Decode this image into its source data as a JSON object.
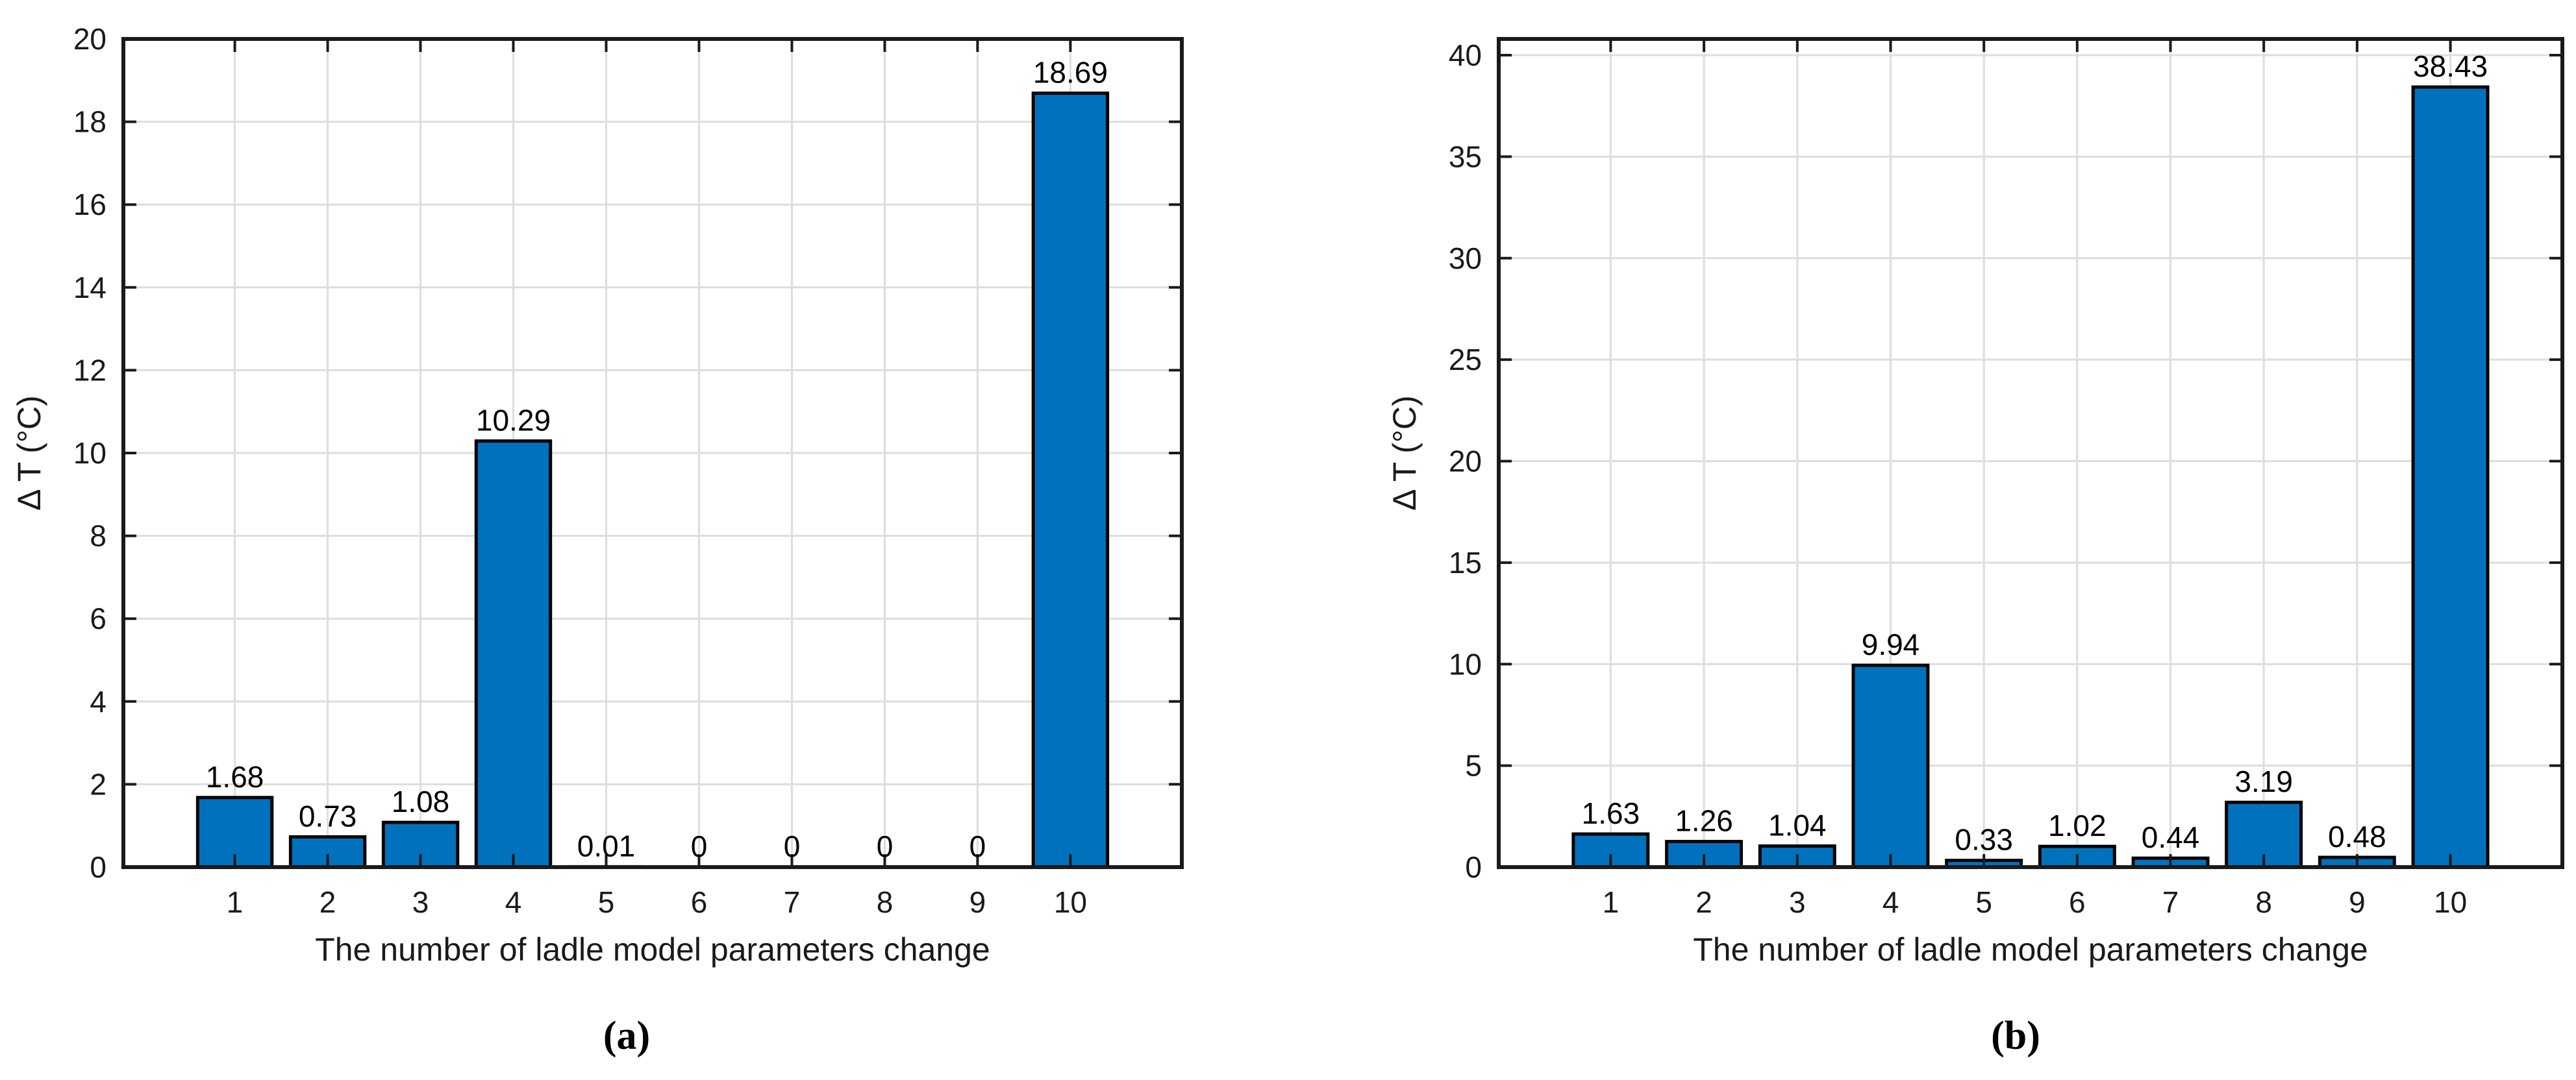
{
  "figure": {
    "background": "#ffffff"
  },
  "colors": {
    "bar_fill": "#0072BD",
    "bar_edge": "#000000",
    "grid": "#DDDDDD",
    "axis": "#1A1A1A",
    "text": "#1A1A1A",
    "label_text": "#000000"
  },
  "chart_data": [
    {
      "type": "bar",
      "panel": "a",
      "caption": "(a)",
      "title": "",
      "xlabel": "The number of ladle model parameters change",
      "ylabel": "Δ T (°C)",
      "categories": [
        "1",
        "2",
        "3",
        "4",
        "5",
        "6",
        "7",
        "8",
        "9",
        "10"
      ],
      "values": [
        1.68,
        0.73,
        1.08,
        10.29,
        0.01,
        0,
        0,
        0,
        0,
        18.69
      ],
      "bar_labels": [
        "1.68",
        "0.73",
        "1.08",
        "10.29",
        "0.01",
        "0",
        "0",
        "0",
        "0",
        "18.69"
      ],
      "ylim": [
        0,
        20
      ],
      "yticks": [
        0,
        2,
        4,
        6,
        8,
        10,
        12,
        14,
        16,
        18,
        20
      ],
      "grid": true,
      "legend": "none",
      "bar_width_ratio": 0.8
    },
    {
      "type": "bar",
      "panel": "b",
      "caption": "(b)",
      "title": "",
      "xlabel": "The number of ladle model parameters change",
      "ylabel": "Δ T (°C)",
      "categories": [
        "1",
        "2",
        "3",
        "4",
        "5",
        "6",
        "7",
        "8",
        "9",
        "10"
      ],
      "values": [
        1.63,
        1.26,
        1.04,
        9.94,
        0.33,
        1.02,
        0.44,
        3.19,
        0.48,
        38.43
      ],
      "bar_labels": [
        "1.63",
        "1.26",
        "1.04",
        "9.94",
        "0.33",
        "1.02",
        "0.44",
        "3.19",
        "0.48",
        "38.43"
      ],
      "ylim": [
        0,
        40.8
      ],
      "yticks": [
        0,
        5,
        10,
        15,
        20,
        25,
        30,
        35,
        40
      ],
      "grid": true,
      "legend": "none",
      "bar_width_ratio": 0.8
    }
  ]
}
